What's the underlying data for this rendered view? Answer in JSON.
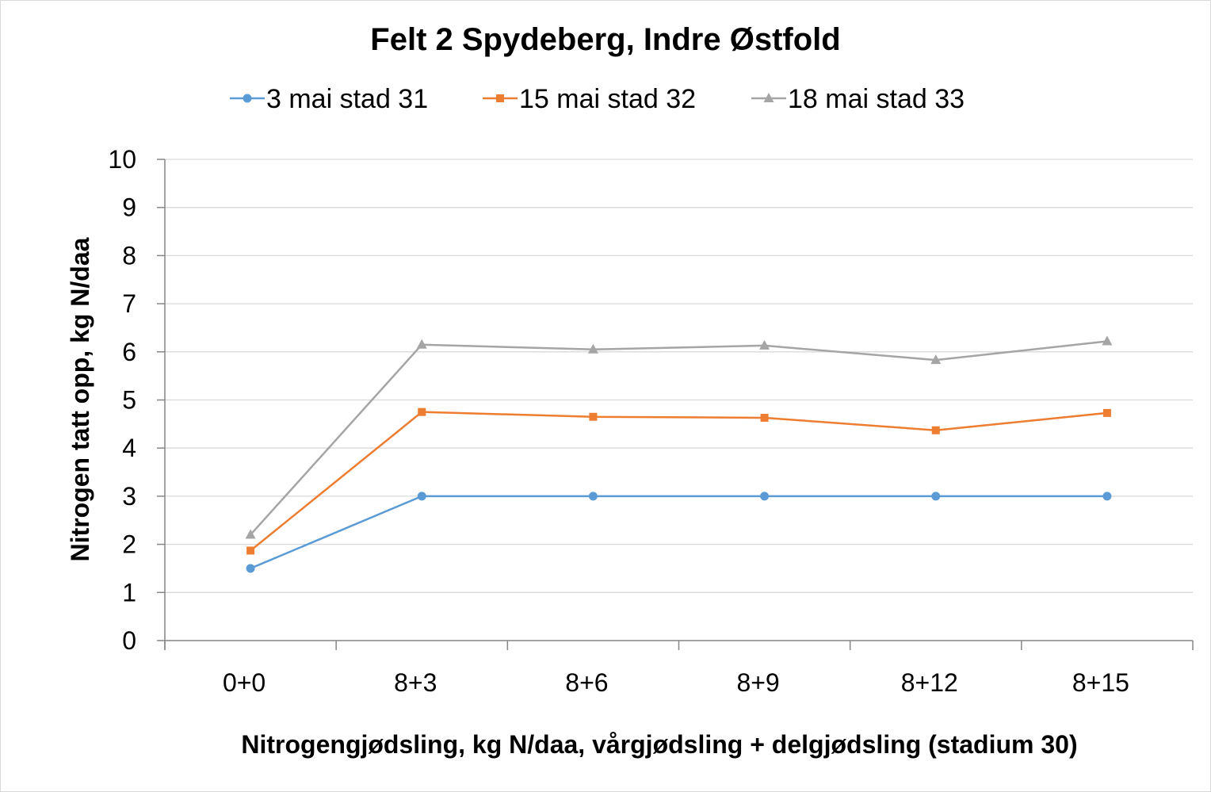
{
  "chart_data": {
    "type": "line",
    "title": "Felt 2 Spydeberg, Indre Østfold",
    "xlabel": "Nitrogengjødsling, kg N/daa, vårgjødsling + delgjødsling (stadium 30)",
    "ylabel": "Nitrogen tatt opp, kg N/daa",
    "categories": [
      "0+0",
      "8+3",
      "8+6",
      "8+9",
      "8+12",
      "8+15"
    ],
    "ylim": [
      0,
      10
    ],
    "yticks": [
      "0",
      "1",
      "2",
      "3",
      "4",
      "5",
      "6",
      "7",
      "8",
      "9",
      "10"
    ],
    "grid": true,
    "legend_position": "top",
    "series": [
      {
        "name": "3 mai stad 31",
        "color": "#5b9bd5",
        "marker": "circle",
        "values": [
          1.5,
          3.0,
          3.0,
          3.0,
          3.0,
          3.0
        ]
      },
      {
        "name": "15 mai stad 32",
        "color": "#ed7d31",
        "marker": "square",
        "values": [
          1.87,
          4.75,
          4.65,
          4.63,
          4.37,
          4.73
        ]
      },
      {
        "name": "18 mai stad 33",
        "color": "#a5a5a5",
        "marker": "triangle",
        "values": [
          2.2,
          6.15,
          6.05,
          6.13,
          5.83,
          6.22
        ]
      }
    ]
  }
}
